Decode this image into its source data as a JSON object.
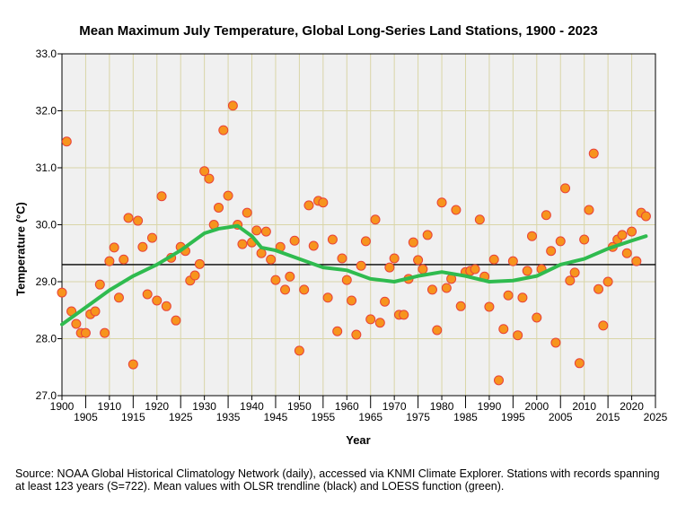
{
  "chart_data": {
    "type": "scatter",
    "title": "Mean Maximum July Temperature, Global Long-Series Land Stations, 1900 - 2023",
    "xlabel": "Year",
    "ylabel": "Temperature (°C)",
    "xlim": [
      1900,
      2025
    ],
    "ylim": [
      27.0,
      33.0
    ],
    "xticks": [
      1900,
      1905,
      1910,
      1915,
      1920,
      1925,
      1930,
      1935,
      1940,
      1945,
      1950,
      1955,
      1960,
      1965,
      1970,
      1975,
      1980,
      1985,
      1990,
      1995,
      2000,
      2005,
      2010,
      2015,
      2020,
      2025
    ],
    "yticks": [
      "27.0",
      "28.0",
      "29.0",
      "30.0",
      "31.0",
      "32.0",
      "33.0"
    ],
    "grid": true,
    "colors": {
      "point_fill": "#f7941d",
      "point_stroke": "#e8423a",
      "loess": "#2fbb4f",
      "ols": "#000000",
      "plot_bg": "#f0f0f0",
      "grid": "#d9d5a7"
    },
    "start_year": 1900,
    "values": [
      28.81,
      31.46,
      28.48,
      28.26,
      28.1,
      28.1,
      28.43,
      28.48,
      28.95,
      28.1,
      29.36,
      29.6,
      28.72,
      29.39,
      30.12,
      27.55,
      30.07,
      29.61,
      28.78,
      29.77,
      28.67,
      30.5,
      28.57,
      29.42,
      28.32,
      29.61,
      29.54,
      29.02,
      29.11,
      29.31,
      30.94,
      30.81,
      30.0,
      30.3,
      31.66,
      30.51,
      32.09,
      30.0,
      29.66,
      30.21,
      29.69,
      29.9,
      29.5,
      29.88,
      29.39,
      29.03,
      29.61,
      28.86,
      29.09,
      29.72,
      27.79,
      28.86,
      30.34,
      29.63,
      30.42,
      30.39,
      28.72,
      29.74,
      28.13,
      29.41,
      29.03,
      28.67,
      28.07,
      29.28,
      29.71,
      28.34,
      30.09,
      28.28,
      28.65,
      29.25,
      29.41,
      28.42,
      28.42,
      29.05,
      29.69,
      29.38,
      29.22,
      29.82,
      28.86,
      28.15,
      30.39,
      28.89,
      29.05,
      30.26,
      28.57,
      29.17,
      29.19,
      29.22,
      30.09,
      29.09,
      28.56,
      29.39,
      27.27,
      28.17,
      28.76,
      29.36,
      28.06,
      28.72,
      29.19,
      29.8,
      28.37,
      29.22,
      30.17,
      29.54,
      27.93,
      29.71,
      30.64,
      29.02,
      29.16,
      27.57,
      29.74,
      30.26,
      31.25,
      28.87,
      28.23,
      29.0,
      29.61,
      29.74,
      29.82,
      29.5,
      29.88,
      29.36,
      30.21,
      30.15
    ],
    "ols": {
      "x": [
        1900,
        2023
      ],
      "y": [
        29.3,
        29.3
      ]
    },
    "loess": {
      "x": [
        1900,
        1905,
        1910,
        1915,
        1920,
        1925,
        1930,
        1933,
        1937,
        1940,
        1942,
        1945,
        1950,
        1955,
        1960,
        1965,
        1970,
        1975,
        1980,
        1985,
        1990,
        1995,
        2000,
        2005,
        2010,
        2015,
        2020,
        2023
      ],
      "y": [
        28.25,
        28.55,
        28.85,
        29.1,
        29.3,
        29.55,
        29.85,
        29.93,
        29.98,
        29.8,
        29.6,
        29.55,
        29.4,
        29.25,
        29.2,
        29.05,
        29.0,
        29.1,
        29.17,
        29.1,
        29.0,
        29.02,
        29.1,
        29.3,
        29.4,
        29.58,
        29.72,
        29.8
      ]
    }
  },
  "source": "Source: NOAA Global Historical Climatology Network (daily), accessed via KNMI Climate Explorer. Stations with records spanning at least 123 years (S=722). Mean values with OLSR trendline (black) and LOESS function (green)."
}
